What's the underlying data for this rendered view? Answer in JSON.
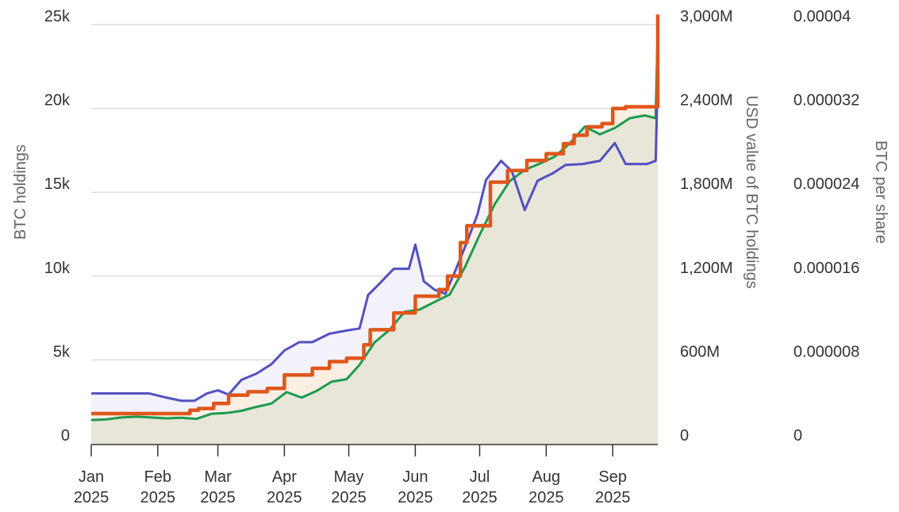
{
  "chart_data": {
    "type": "line",
    "x_ticks": [
      {
        "date": "2025-01-01",
        "month": "Jan",
        "year": "2025"
      },
      {
        "date": "2025-02-01",
        "month": "Feb",
        "year": "2025"
      },
      {
        "date": "2025-03-01",
        "month": "Mar",
        "year": "2025"
      },
      {
        "date": "2025-04-01",
        "month": "Apr",
        "year": "2025"
      },
      {
        "date": "2025-05-01",
        "month": "May",
        "year": "2025"
      },
      {
        "date": "2025-06-01",
        "month": "Jun",
        "year": "2025"
      },
      {
        "date": "2025-07-01",
        "month": "Jul",
        "year": "2025"
      },
      {
        "date": "2025-08-01",
        "month": "Aug",
        "year": "2025"
      },
      {
        "date": "2025-09-01",
        "month": "Sep",
        "year": "2025"
      }
    ],
    "xlim": [
      "2025-01-01",
      "2025-09-22"
    ],
    "axes": {
      "left": {
        "label": "BTC holdings",
        "ylim": [
          0,
          25000
        ],
        "ticks": [
          {
            "value": 0,
            "label": "0"
          },
          {
            "value": 5000,
            "label": "5k"
          },
          {
            "value": 10000,
            "label": "10k"
          },
          {
            "value": 15000,
            "label": "15k"
          },
          {
            "value": 20000,
            "label": "20k"
          },
          {
            "value": 25000,
            "label": "25k"
          }
        ]
      },
      "right1": {
        "label": "USD value of BTC holdings",
        "ylim": [
          0,
          3000
        ],
        "ticks": [
          {
            "value": 0,
            "label": "0"
          },
          {
            "value": 600,
            "label": "600M"
          },
          {
            "value": 1200,
            "label": "1,200M"
          },
          {
            "value": 1800,
            "label": "1,800M"
          },
          {
            "value": 2400,
            "label": "2,400M"
          },
          {
            "value": 3000,
            "label": "3,000M"
          }
        ]
      },
      "right2": {
        "label": "BTC per share",
        "ylim": [
          0,
          4e-05
        ],
        "ticks": [
          {
            "value": 0,
            "label": "0"
          },
          {
            "value": 8e-06,
            "label": "0.000008"
          },
          {
            "value": 1.6e-05,
            "label": "0.000016"
          },
          {
            "value": 2.4e-05,
            "label": "0.000024"
          },
          {
            "value": 3.2e-05,
            "label": "0.000032"
          },
          {
            "value": 4e-05,
            "label": "0.00004"
          }
        ]
      }
    },
    "grid": "horizontal",
    "legend": "none",
    "series": [
      {
        "color": "#e0561b",
        "axis": "left",
        "fill": "#fbeee2",
        "step": true,
        "points": [
          [
            "2025-01-01",
            1800
          ],
          [
            "2025-02-15",
            1800
          ],
          [
            "2025-02-16",
            2000
          ],
          [
            "2025-02-20",
            2100
          ],
          [
            "2025-02-27",
            2400
          ],
          [
            "2025-03-06",
            2900
          ],
          [
            "2025-03-15",
            3100
          ],
          [
            "2025-03-24",
            3300
          ],
          [
            "2025-04-01",
            4100
          ],
          [
            "2025-04-14",
            4500
          ],
          [
            "2025-04-22",
            4900
          ],
          [
            "2025-04-30",
            5100
          ],
          [
            "2025-05-08",
            5900
          ],
          [
            "2025-05-11",
            6800
          ],
          [
            "2025-05-22",
            7800
          ],
          [
            "2025-06-01",
            8800
          ],
          [
            "2025-06-12",
            9200
          ],
          [
            "2025-06-16",
            10000
          ],
          [
            "2025-06-22",
            12000
          ],
          [
            "2025-06-25",
            13000
          ],
          [
            "2025-07-06",
            15600
          ],
          [
            "2025-07-14",
            16300
          ],
          [
            "2025-07-23",
            16900
          ],
          [
            "2025-08-01",
            17300
          ],
          [
            "2025-08-09",
            17900
          ],
          [
            "2025-08-14",
            18400
          ],
          [
            "2025-08-20",
            18900
          ],
          [
            "2025-08-27",
            19100
          ],
          [
            "2025-09-01",
            20000
          ],
          [
            "2025-09-07",
            20100
          ],
          [
            "2025-09-21",
            20100
          ],
          [
            "2025-09-22",
            25600
          ]
        ]
      },
      {
        "color": "#1c9b4e",
        "axis": "right1",
        "fill": "#e7e6d9",
        "step": false,
        "points": [
          [
            "2025-01-01",
            170
          ],
          [
            "2025-01-08",
            174
          ],
          [
            "2025-01-15",
            188
          ],
          [
            "2025-01-22",
            194
          ],
          [
            "2025-01-29",
            188
          ],
          [
            "2025-02-05",
            182
          ],
          [
            "2025-02-12",
            186
          ],
          [
            "2025-02-19",
            178
          ],
          [
            "2025-02-26",
            214
          ],
          [
            "2025-03-05",
            220
          ],
          [
            "2025-03-12",
            236
          ],
          [
            "2025-03-19",
            264
          ],
          [
            "2025-03-26",
            288
          ],
          [
            "2025-04-02",
            370
          ],
          [
            "2025-04-09",
            330
          ],
          [
            "2025-04-16",
            378
          ],
          [
            "2025-04-23",
            444
          ],
          [
            "2025-04-30",
            462
          ],
          [
            "2025-05-06",
            565
          ],
          [
            "2025-05-13",
            725
          ],
          [
            "2025-05-20",
            815
          ],
          [
            "2025-05-27",
            945
          ],
          [
            "2025-06-03",
            960
          ],
          [
            "2025-06-10",
            1015
          ],
          [
            "2025-06-17",
            1068
          ],
          [
            "2025-06-24",
            1260
          ],
          [
            "2025-07-01",
            1495
          ],
          [
            "2025-07-08",
            1715
          ],
          [
            "2025-07-15",
            1880
          ],
          [
            "2025-07-22",
            1960
          ],
          [
            "2025-07-29",
            2005
          ],
          [
            "2025-08-05",
            2055
          ],
          [
            "2025-08-12",
            2150
          ],
          [
            "2025-08-19",
            2270
          ],
          [
            "2025-08-26",
            2215
          ],
          [
            "2025-09-02",
            2260
          ],
          [
            "2025-09-09",
            2330
          ],
          [
            "2025-09-16",
            2350
          ],
          [
            "2025-09-21",
            2330
          ],
          [
            "2025-09-22",
            2990
          ]
        ]
      },
      {
        "color": "#5250c0",
        "axis": "right2",
        "fill": "#f3f2fb",
        "step": false,
        "points": [
          [
            "2025-01-01",
            4.8e-06
          ],
          [
            "2025-01-28",
            4.8e-06
          ],
          [
            "2025-02-05",
            4.4e-06
          ],
          [
            "2025-02-12",
            4.1e-06
          ],
          [
            "2025-02-18",
            4.1e-06
          ],
          [
            "2025-02-24",
            4.8e-06
          ],
          [
            "2025-03-01",
            5.1e-06
          ],
          [
            "2025-03-06",
            4.7e-06
          ],
          [
            "2025-03-12",
            6.1e-06
          ],
          [
            "2025-03-19",
            6.7e-06
          ],
          [
            "2025-03-26",
            7.6e-06
          ],
          [
            "2025-04-01",
            8.9e-06
          ],
          [
            "2025-04-08",
            9.7e-06
          ],
          [
            "2025-04-14",
            9.7e-06
          ],
          [
            "2025-04-22",
            1.05e-05
          ],
          [
            "2025-04-30",
            1.08e-05
          ],
          [
            "2025-05-06",
            1.1e-05
          ],
          [
            "2025-05-10",
            1.42e-05
          ],
          [
            "2025-05-14",
            1.5e-05
          ],
          [
            "2025-05-22",
            1.67e-05
          ],
          [
            "2025-05-29",
            1.67e-05
          ],
          [
            "2025-06-01",
            1.9e-05
          ],
          [
            "2025-06-05",
            1.55e-05
          ],
          [
            "2025-06-10",
            1.47e-05
          ],
          [
            "2025-06-15",
            1.43e-05
          ],
          [
            "2025-06-20",
            1.67e-05
          ],
          [
            "2025-06-25",
            1.92e-05
          ],
          [
            "2025-06-30",
            2.19e-05
          ],
          [
            "2025-07-04",
            2.52e-05
          ],
          [
            "2025-07-11",
            2.7e-05
          ],
          [
            "2025-07-16",
            2.6e-05
          ],
          [
            "2025-07-22",
            2.23e-05
          ],
          [
            "2025-07-28",
            2.51e-05
          ],
          [
            "2025-08-04",
            2.58e-05
          ],
          [
            "2025-08-10",
            2.66e-05
          ],
          [
            "2025-08-18",
            2.67e-05
          ],
          [
            "2025-08-26",
            2.7e-05
          ],
          [
            "2025-09-02",
            2.87e-05
          ],
          [
            "2025-09-07",
            2.67e-05
          ],
          [
            "2025-09-17",
            2.67e-05
          ],
          [
            "2025-09-21",
            2.7e-05
          ],
          [
            "2025-09-22",
            3.5e-05
          ]
        ]
      }
    ]
  }
}
